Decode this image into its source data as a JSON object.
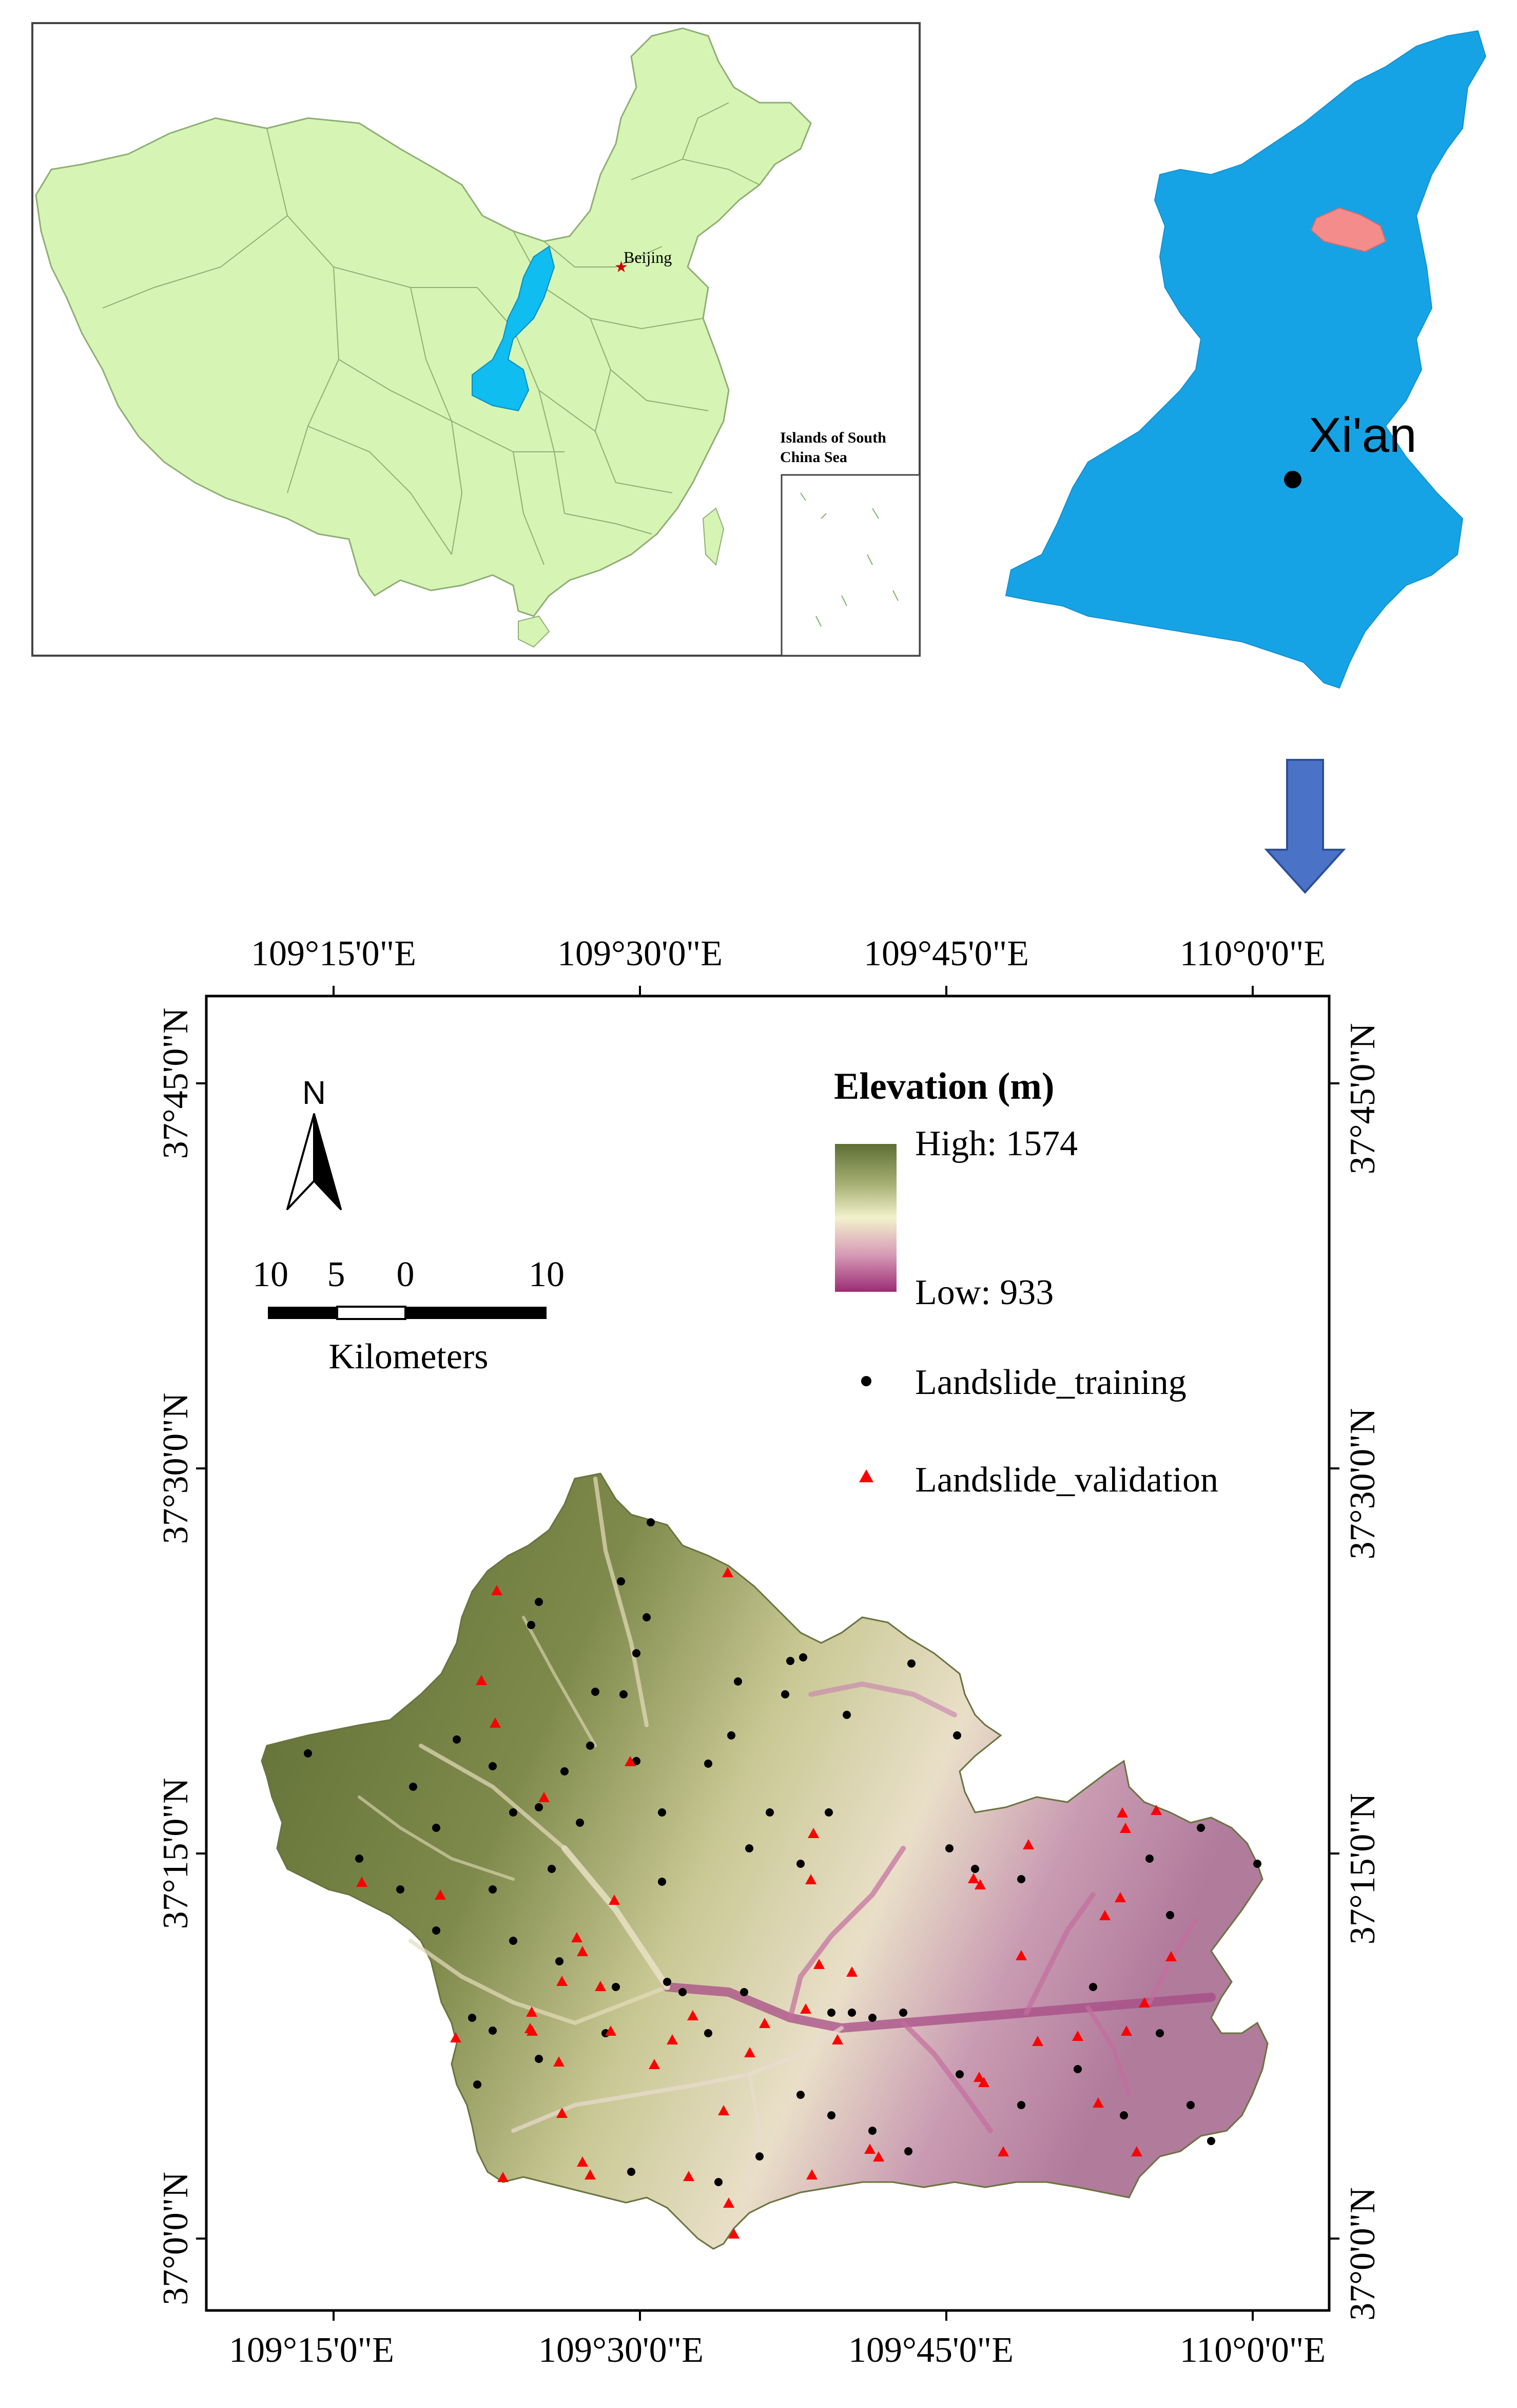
{
  "inset_china": {
    "capital_label": "Beijing",
    "islands_label_line1": "Islands of South",
    "islands_label_line2": "China Sea"
  },
  "inset_province": {
    "city_label": "Xi'an"
  },
  "colors": {
    "china_fill": "#d6f5b4",
    "china_border": "#8fae75",
    "province_highlight": "#0fbdf0",
    "province_fill": "#16a3e6",
    "study_area_fill": "#f58c8c",
    "arrow_fill": "#4a73c8",
    "training_point": "#000000",
    "validation_point": "#ff0000",
    "elevation_high": "#5e6e34",
    "elevation_mid": "#f2f2cc",
    "elevation_low": "#9a2d74"
  },
  "main_map": {
    "top_ticks": [
      "109°15'0\"E",
      "109°30'0\"E",
      "109°45'0\"E",
      "110°0'0\"E"
    ],
    "bottom_ticks": [
      "109°15'0\"E",
      "109°30'0\"E",
      "109°45'0\"E",
      "110°0'0\"E"
    ],
    "left_ticks": [
      "37°45'0\"N",
      "37°30'0\"N",
      "37°15'0\"N",
      "37°0'0\"N"
    ],
    "right_ticks": [
      "37°45'0\"N",
      "37°30'0\"N",
      "37°15'0\"N",
      "37°0'0\"N"
    ],
    "north_label": "N",
    "scale": {
      "labels": [
        "10",
        "5",
        "0",
        "10"
      ],
      "unit": "Kilometers"
    },
    "legend": {
      "title": "Elevation (m)",
      "high": "High: 1574",
      "low": "Low: 933",
      "training": "Landslide_training",
      "validation": "Landslide_validation"
    }
  }
}
